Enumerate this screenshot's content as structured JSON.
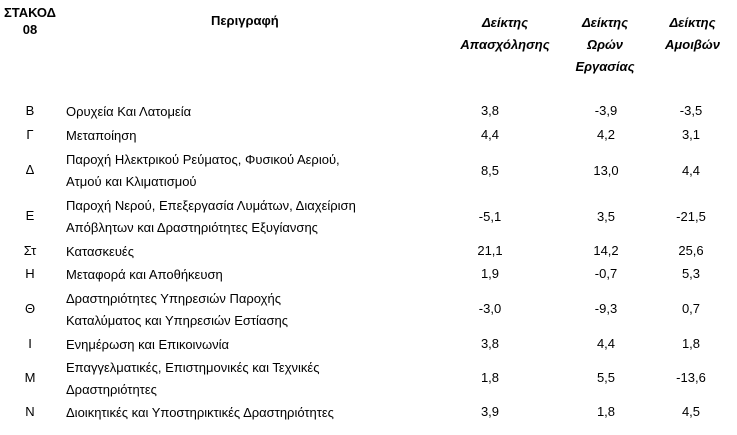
{
  "header": {
    "code_line1": "ΣΤΑΚΟΔ",
    "code_line2": "08",
    "description": "Περιγραφή",
    "col1_line1": "Δείκτης",
    "col1_line2": "Απασχόλησης",
    "col2_line1": "Δείκτης",
    "col2_line2": "Ωρών",
    "col2_line3": "Εργασίας",
    "col3_line1": "Δείκτης",
    "col3_line2": "Αμοιβών"
  },
  "rows": [
    {
      "code": "Β",
      "desc1": "Ορυχεία Και Λατομεία",
      "desc2": "",
      "v1": "3,8",
      "v2": "-3,9",
      "v3": "-3,5"
    },
    {
      "code": "Γ",
      "desc1": "Μεταποίηση",
      "desc2": "",
      "v1": "4,4",
      "v2": "4,2",
      "v3": "3,1"
    },
    {
      "code": "Δ",
      "desc1": "Παροχή Ηλεκτρικού Ρεύματος, Φυσικού Αεριού,",
      "desc2": "Ατμού και Κλιματισμού",
      "v1": "8,5",
      "v2": "13,0",
      "v3": "4,4"
    },
    {
      "code": "Ε",
      "desc1": "Παροχή Νερού, Επεξεργασία Λυμάτων, Διαχείριση",
      "desc2": "Απόβλητων και Δραστηριότητες Εξυγίανσης",
      "v1": "-5,1",
      "v2": "3,5",
      "v3": "-21,5"
    },
    {
      "code": "Στ",
      "desc1": "Κατασκευές",
      "desc2": "",
      "v1": "21,1",
      "v2": "14,2",
      "v3": "25,6"
    },
    {
      "code": "Η",
      "desc1": "Μεταφορά και Αποθήκευση",
      "desc2": "",
      "v1": "1,9",
      "v2": "-0,7",
      "v3": "5,3"
    },
    {
      "code": "Θ",
      "desc1": "Δραστηριότητες Υπηρεσιών Παροχής",
      "desc2": "Καταλύματος και Υπηρεσιών Εστίασης",
      "v1": "-3,0",
      "v2": "-9,3",
      "v3": "0,7"
    },
    {
      "code": "Ι",
      "desc1": "Ενημέρωση και Επικοινωνία",
      "desc2": "",
      "v1": "3,8",
      "v2": "4,4",
      "v3": "1,8"
    },
    {
      "code": "Μ",
      "desc1": "Επαγγελματικές, Επιστημονικές και Τεχνικές",
      "desc2": "Δραστηριότητες",
      "v1": "1,8",
      "v2": "5,5",
      "v3": "-13,6"
    },
    {
      "code": "Ν",
      "desc1": "Διοικητικές και Υποστηρικτικές Δραστηριότητες",
      "desc2": "",
      "v1": "3,9",
      "v2": "1,8",
      "v3": "4,5"
    }
  ]
}
